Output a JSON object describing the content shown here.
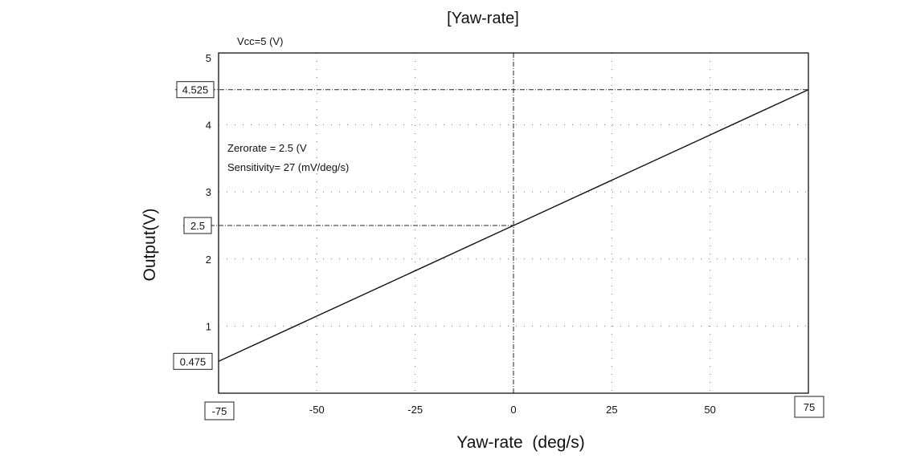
{
  "chart_data": {
    "type": "line",
    "title": "[Yaw-rate]",
    "xlabel": "Yaw-rate  (deg/s)",
    "ylabel": "Output(V)",
    "xlim": [
      -75,
      75
    ],
    "ylim": [
      0,
      5
    ],
    "x_ticks": [
      -50,
      -25,
      0,
      25,
      50
    ],
    "y_ticks": [
      1,
      2,
      3,
      4,
      5
    ],
    "grid": true,
    "series": [
      {
        "x": [
          -75,
          75
        ],
        "values": [
          0.475,
          4.525
        ]
      }
    ],
    "annotations": {
      "vcc": "Vcc=5 (V)",
      "zerorate": "Zerorate = 2.5 (V",
      "sensitivity": "Sensitivity= 27 (mV/deg/s)"
    },
    "boxed_labels": {
      "y_high": "4.525",
      "y_mid": "2.5",
      "y_low": "0.475",
      "x_min": "-75",
      "x_max": "75"
    },
    "reference_values": {
      "y_high": 4.525,
      "y_mid": 2.5,
      "y_low": 0.475,
      "x_min": -75,
      "x_max": 75
    }
  }
}
